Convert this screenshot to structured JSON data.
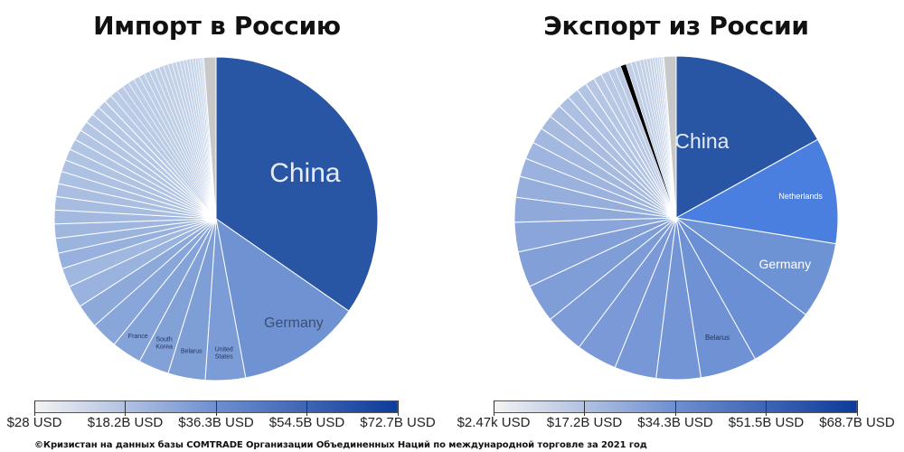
{
  "chart_data": [
    {
      "type": "pie",
      "title": "Импорт в Россию",
      "unit": "USD",
      "slices": [
        {
          "name": "China",
          "value": 72.7,
          "color": "#2955a5"
        },
        {
          "name": "Germany",
          "value": 26.0,
          "color": "#6f93d2"
        },
        {
          "name": "United States",
          "value": 8.4,
          "color": "#7b9cd6"
        },
        {
          "name": "Belarus",
          "value": 7.8,
          "color": "#7e9ed6"
        },
        {
          "name": "South Korea",
          "value": 6.4,
          "color": "#82a1d7"
        },
        {
          "name": "France",
          "value": 6.3,
          "color": "#84a3d8"
        },
        {
          "name": "",
          "value": 5.6,
          "color": "#88a6d9"
        },
        {
          "name": "",
          "value": 5.0,
          "color": "#8ca9da"
        },
        {
          "name": "",
          "value": 4.6,
          "color": "#9ab3de"
        },
        {
          "name": "",
          "value": 4.0,
          "color": "#a0b8e0"
        },
        {
          "name": "",
          "value": 3.3,
          "color": "#97b0dd"
        },
        {
          "name": "",
          "value": 3.1,
          "color": "#9bb4de"
        },
        {
          "name": "",
          "value": 3.0,
          "color": "#9fb7df"
        },
        {
          "name": "",
          "value": 2.9,
          "color": "#a3b9e0"
        },
        {
          "name": "",
          "value": 2.8,
          "color": "#a6bce1"
        },
        {
          "name": "",
          "value": 2.7,
          "color": "#a9bee1"
        },
        {
          "name": "",
          "value": 2.6,
          "color": "#abc0e2"
        },
        {
          "name": "",
          "value": 2.5,
          "color": "#adc1e2"
        },
        {
          "name": "",
          "value": 2.4,
          "color": "#afc3e3"
        },
        {
          "name": "",
          "value": 2.3,
          "color": "#b1c4e3"
        },
        {
          "name": "",
          "value": 2.2,
          "color": "#b2c5e4"
        },
        {
          "name": "",
          "value": 2.1,
          "color": "#b4c6e4"
        },
        {
          "name": "",
          "value": 2.0,
          "color": "#b5c7e4"
        },
        {
          "name": "",
          "value": 1.9,
          "color": "#b6c8e5"
        },
        {
          "name": "",
          "value": 1.8,
          "color": "#b8c9e5"
        },
        {
          "name": "",
          "value": 1.7,
          "color": "#b9cae5"
        },
        {
          "name": "",
          "value": 1.6,
          "color": "#bacbe5"
        },
        {
          "name": "",
          "value": 1.5,
          "color": "#bbcbe6"
        },
        {
          "name": "",
          "value": 1.4,
          "color": "#bccce6"
        },
        {
          "name": "",
          "value": 1.3,
          "color": "#bdcde6"
        },
        {
          "name": "",
          "value": 1.25,
          "color": "#bdcde6"
        },
        {
          "name": "",
          "value": 1.2,
          "color": "#becee7"
        },
        {
          "name": "",
          "value": 1.15,
          "color": "#bfcee7"
        },
        {
          "name": "",
          "value": 1.1,
          "color": "#bfcfe7"
        },
        {
          "name": "",
          "value": 1.05,
          "color": "#c0cfe7"
        },
        {
          "name": "",
          "value": 1.0,
          "color": "#c1d0e7"
        },
        {
          "name": "",
          "value": 0.95,
          "color": "#c1d0e8"
        },
        {
          "name": "",
          "value": 0.9,
          "color": "#c2d1e8"
        },
        {
          "name": "",
          "value": 0.85,
          "color": "#c2d1e8"
        },
        {
          "name": "",
          "value": 0.8,
          "color": "#c3d2e8"
        },
        {
          "name": "",
          "value": 0.75,
          "color": "#c3d2e8"
        },
        {
          "name": "",
          "value": 0.7,
          "color": "#c4d2e8"
        },
        {
          "name": "",
          "value": 0.65,
          "color": "#c4d3e9"
        },
        {
          "name": "",
          "value": 0.6,
          "color": "#c5d3e9"
        },
        {
          "name": "",
          "value": 0.55,
          "color": "#c5d3e9"
        },
        {
          "name": "",
          "value": 0.5,
          "color": "#c6d4e9"
        },
        {
          "name": "",
          "value": 0.45,
          "color": "#c6d4e9"
        },
        {
          "name": "",
          "value": 0.4,
          "color": "#c7d4e9"
        },
        {
          "name": "",
          "value": 0.35,
          "color": "#c7d5e9"
        },
        {
          "name": "",
          "value": 2.6,
          "color": "#c8c8c8"
        }
      ],
      "legend": {
        "gradient": [
          "#f3f3f3",
          "#6e8fd0",
          "#0d3b9a"
        ],
        "ticks": [
          "$28 USD",
          "$18.2B USD",
          "$36.3B USD",
          "$54.5B USD",
          "$72.7B USD"
        ]
      }
    },
    {
      "type": "pie",
      "title": "Экспорт из России",
      "unit": "USD",
      "slices": [
        {
          "name": "China",
          "value": 68.7,
          "color": "#2955a5"
        },
        {
          "name": "Netherlands",
          "value": 43.0,
          "color": "#4a7fe0"
        },
        {
          "name": "Germany",
          "value": 31.0,
          "color": "#6d93d4"
        },
        {
          "name": "",
          "value": 27.0,
          "color": "#6b8fd4"
        },
        {
          "name": "Belarus",
          "value": 23.0,
          "color": "#6f92d5"
        },
        {
          "name": "",
          "value": 18.0,
          "color": "#7495d5"
        },
        {
          "name": "",
          "value": 17.0,
          "color": "#7797d6"
        },
        {
          "name": "",
          "value": 16.5,
          "color": "#7a99d6"
        },
        {
          "name": "",
          "value": 16.0,
          "color": "#7c9bd7"
        },
        {
          "name": "",
          "value": 15.5,
          "color": "#7f9dd7"
        },
        {
          "name": "",
          "value": 14.5,
          "color": "#839fd8"
        },
        {
          "name": "",
          "value": 12.0,
          "color": "#8aa5da"
        },
        {
          "name": "",
          "value": 10.0,
          "color": "#90a9db"
        },
        {
          "name": "",
          "value": 8.5,
          "color": "#96aedc"
        },
        {
          "name": "",
          "value": 7.5,
          "color": "#9bb2de"
        },
        {
          "name": "",
          "value": 7.0,
          "color": "#9fb5df"
        },
        {
          "name": "",
          "value": 6.5,
          "color": "#a3b8e0"
        },
        {
          "name": "",
          "value": 6.0,
          "color": "#a7bbe1"
        },
        {
          "name": "",
          "value": 5.5,
          "color": "#aabde1"
        },
        {
          "name": "",
          "value": 5.0,
          "color": "#adbfe2"
        },
        {
          "name": "",
          "value": 4.6,
          "color": "#b0c2e3"
        },
        {
          "name": "",
          "value": 4.2,
          "color": "#b2c4e3"
        },
        {
          "name": "",
          "value": 3.8,
          "color": "#b5c6e4"
        },
        {
          "name": "",
          "value": 3.4,
          "color": "#b7c7e4"
        },
        {
          "name": "",
          "value": 3.1,
          "color": "#b9c9e5"
        },
        {
          "name": "",
          "value": 2.8,
          "color": "#bbcae5"
        },
        {
          "name": "",
          "value": 2.5,
          "color": "#bccbe5"
        },
        {
          "name": "",
          "value": 2.3,
          "color": "#beccе6"
        },
        {
          "name": "",
          "value": 2.1,
          "color": "#bfcde6"
        },
        {
          "name": "",
          "value": 1.9,
          "color": "#c0cee6"
        },
        {
          "name": "",
          "value": 1.7,
          "color": "#c1cfe7"
        },
        {
          "name": "",
          "value": 1.5,
          "color": "#c2d0e7"
        },
        {
          "name": "",
          "value": 1.35,
          "color": "#c3d1e7"
        },
        {
          "name": "",
          "value": 1.2,
          "color": "#c4d1e7"
        },
        {
          "name": "",
          "value": 1.1,
          "color": "#c4d2e8"
        },
        {
          "name": "",
          "value": 1.0,
          "color": "#c5d2e8"
        },
        {
          "name": "",
          "value": 0.9,
          "color": "#c5d3e8"
        },
        {
          "name": "",
          "value": 0.8,
          "color": "#c6d3e8"
        },
        {
          "name": "",
          "value": 0.7,
          "color": "#c6d3e8"
        },
        {
          "name": "",
          "value": 0.6,
          "color": "#c7d4e9"
        },
        {
          "name": "",
          "value": 0.5,
          "color": "#c7d4e9"
        },
        {
          "name": "",
          "value": 5.0,
          "color": "#c8c8c8"
        }
      ],
      "legend": {
        "gradient": [
          "#f3f3f3",
          "#6e8fd0",
          "#0d3b9a"
        ],
        "ticks": [
          "$2.47k USD",
          "$17.2B USD",
          "$34.3B USD",
          "$51.5B USD",
          "$68.7B USD"
        ]
      }
    }
  ],
  "footnote": "©Кризистан на данных базы COMTRADE Организации Объединенных Наций по международной торговле за 2021 год"
}
